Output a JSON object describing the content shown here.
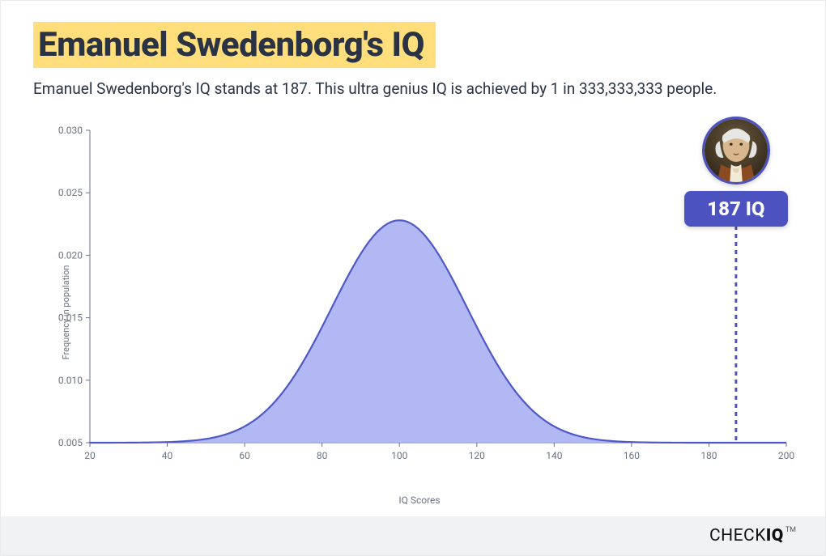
{
  "page": {
    "background_color": "#ffffff",
    "border_color": "#e9eaec"
  },
  "header": {
    "title": "Emanuel Swedenborg's IQ",
    "title_color": "#2a3344",
    "title_highlight_bg": "#ffde7b",
    "title_fontsize": 42,
    "subtitle": "Emanuel Swedenborg's IQ stands at 187. This ultra genius IQ is achieved by 1 in 333,333,333 people.",
    "subtitle_color": "#2a3344",
    "subtitle_fontsize": 19
  },
  "chart": {
    "type": "area",
    "distribution": "normal",
    "mean": 100,
    "std_dev": 17.5,
    "baseline_y": 0.005,
    "peak_y": 0.0228,
    "xlim": [
      20,
      200
    ],
    "ylim": [
      0.005,
      0.03
    ],
    "xticks": [
      20,
      40,
      60,
      80,
      100,
      120,
      140,
      160,
      180,
      200
    ],
    "yticks": [
      0.005,
      0.01,
      0.015,
      0.02,
      0.025,
      0.03
    ],
    "ytick_labels": [
      "0.005",
      "0.010",
      "0.015",
      "0.020",
      "0.025",
      "0.030"
    ],
    "xlabel": "IQ Scores",
    "ylabel": "Frequency in population",
    "line_color": "#4f58c7",
    "line_width": 2.2,
    "fill_color": "#a5acf2",
    "fill_opacity": 0.85,
    "axis_color": "#6b7280",
    "tick_label_color": "#6b7280",
    "tick_fontsize": 12,
    "label_fontsize": 12,
    "plot_bg": "#ffffff"
  },
  "marker": {
    "iq_value": 187,
    "label": "187 IQ",
    "pill_bg": "#4c52bf",
    "pill_text_color": "#ffffff",
    "pill_fontsize": 24,
    "avatar_border_color": "#4c52bf",
    "dash_color": "#4c52bf",
    "dash_width": 3,
    "dash_pattern": "5,5"
  },
  "footer": {
    "brand_prefix": "CHECK",
    "brand_bold": "IQ",
    "brand_tm": "TM",
    "bg": "#f1f2f4",
    "text_color": "#111111"
  }
}
